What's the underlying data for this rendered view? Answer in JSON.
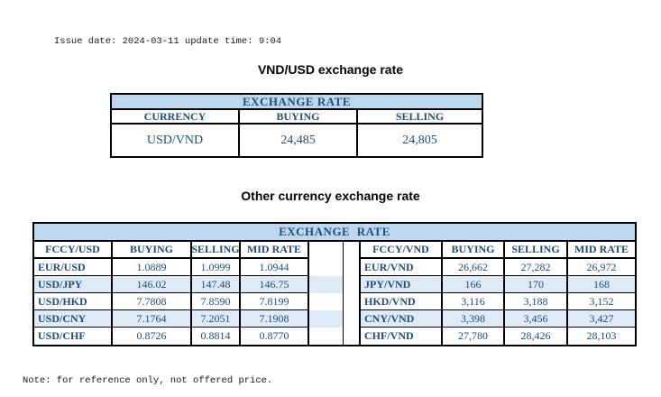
{
  "meta": {
    "issue_line": "Issue date: 2024-03-11 update time: 9:04",
    "note_line": "Note: for reference only, not offered price."
  },
  "usd_table": {
    "title": "VND/USD exchange rate",
    "header": "EXCHANGE RATE",
    "columns": [
      "CURRENCY",
      "BUYING",
      "SELLING"
    ],
    "row": {
      "currency": "USD/VND",
      "buying": "24,485",
      "selling": "24,805"
    }
  },
  "other_table": {
    "title": "Other currency exchange rate",
    "header": "EXCHANGE  RATE",
    "left": {
      "columns": [
        "FCCY/USD",
        "BUYING",
        "SELLING",
        "MID RATE"
      ],
      "rows": [
        [
          "EUR/USD",
          "1.0889",
          "1.0999",
          "1.0944"
        ],
        [
          "USD/JPY",
          "146.02",
          "147.48",
          "146.75"
        ],
        [
          "USD/HKD",
          "7.7808",
          "7.8590",
          "7.8199"
        ],
        [
          "USD/CNY",
          "7.1764",
          "7.2051",
          "7.1908"
        ],
        [
          "USD/CHF",
          "0.8726",
          "0.8814",
          "0.8770"
        ]
      ]
    },
    "right": {
      "columns": [
        "FCCY/VND",
        "BUYING",
        "SELLING",
        "MID RATE"
      ],
      "rows": [
        [
          "EUR/VND",
          "26,662",
          "27,282",
          "26,972"
        ],
        [
          "JPY/VND",
          "166",
          "170",
          "168"
        ],
        [
          "HKD/VND",
          "3,116",
          "3,188",
          "3,152"
        ],
        [
          "CNY/VND",
          "3,398",
          "3,456",
          "3,427"
        ],
        [
          "CHF/VND",
          "27,780",
          "28,426",
          "28,103"
        ]
      ]
    }
  },
  "colors": {
    "header_bg": "#BDD7EE",
    "stripe_bg": "#DEEAF6",
    "table_text": "#1F4E79",
    "border": "#000000"
  }
}
